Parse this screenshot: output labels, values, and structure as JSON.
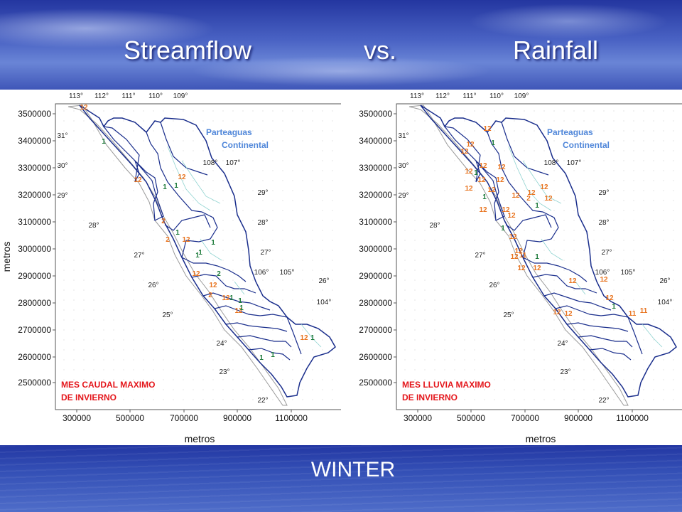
{
  "slide": {
    "title_left": "Streamflow",
    "title_mid": "vs.",
    "title_right": "Rainfall",
    "footer": "WINTER"
  },
  "maps": [
    {
      "map_title_line1": "MES CAUDAL MAXIMO",
      "map_title_line2": "DE INVIERNO",
      "divide_label_line1": "Parteaguas",
      "divide_label_line2": "Continental",
      "xlabel": "metros",
      "ylabel": "metros",
      "x_ticks": [
        "300000",
        "500000",
        "700000",
        "900000",
        "1100000"
      ],
      "y_ticks": [
        "3500000",
        "3400000",
        "3300000",
        "3200000",
        "3100000",
        "3000000",
        "2900000",
        "2800000",
        "2700000",
        "2600000",
        "2500000"
      ],
      "top_longitudes": [
        "113°",
        "112°",
        "111°",
        "110°",
        "109°"
      ],
      "interior_longitudes": [
        "108°",
        "107°",
        "106°",
        "105°",
        "104°"
      ],
      "latitudes": [
        "31°",
        "30°",
        "29°",
        "28°",
        "27°",
        "26°",
        "25°",
        "24°",
        "23°",
        "22°"
      ],
      "east_latitudes": [
        "29°",
        "28°",
        "27°",
        "26°"
      ],
      "month_labels": [
        {
          "t": "12",
          "c": "o"
        },
        {
          "t": "1",
          "c": "g"
        },
        {
          "t": "12",
          "c": "o"
        },
        {
          "t": "1",
          "c": "g"
        },
        {
          "t": "1",
          "c": "g"
        },
        {
          "t": "12",
          "c": "o"
        },
        {
          "t": "2",
          "c": "o"
        },
        {
          "t": "1",
          "c": "g"
        },
        {
          "t": "12",
          "c": "o"
        },
        {
          "t": "1",
          "c": "g"
        },
        {
          "t": "1",
          "c": "g"
        },
        {
          "t": "2",
          "c": "o"
        },
        {
          "t": "12",
          "c": "o"
        },
        {
          "t": "2",
          "c": "g"
        },
        {
          "t": "1",
          "c": "g"
        },
        {
          "t": "12",
          "c": "o"
        },
        {
          "t": "1",
          "c": "g"
        },
        {
          "t": "2",
          "c": "o"
        },
        {
          "t": "12",
          "c": "o"
        },
        {
          "t": "12",
          "c": "o"
        },
        {
          "t": "1",
          "c": "g"
        },
        {
          "t": "1",
          "c": "g"
        },
        {
          "t": "1",
          "c": "g"
        },
        {
          "t": "1",
          "c": "g"
        },
        {
          "t": "12",
          "c": "o"
        },
        {
          "t": "1",
          "c": "g"
        }
      ]
    },
    {
      "map_title_line1": "MES LLUVIA MAXIMO",
      "map_title_line2": "DE INVIERNO",
      "divide_label_line1": "Parteaguas",
      "divide_label_line2": "Continental",
      "xlabel": "metros",
      "ylabel": "",
      "x_ticks": [
        "300000",
        "500000",
        "700000",
        "900000",
        "1100000"
      ],
      "y_ticks": [
        "3500000",
        "3400000",
        "3300000",
        "3200000",
        "3100000",
        "3000000",
        "2900000",
        "2800000",
        "2700000",
        "2600000",
        "2500000"
      ],
      "top_longitudes": [
        "113°",
        "112°",
        "111°",
        "110°",
        "109°"
      ],
      "interior_longitudes": [
        "108°",
        "107°",
        "106°",
        "105°",
        "104°"
      ],
      "latitudes": [
        "31°",
        "30°",
        "29°",
        "28°",
        "27°",
        "26°",
        "25°",
        "24°",
        "23°",
        "22°"
      ],
      "east_latitudes": [
        "29°",
        "28°",
        "27°",
        "26°"
      ],
      "month_labels": [
        {
          "t": "12",
          "c": "o"
        },
        {
          "t": "12",
          "c": "o"
        },
        {
          "t": "1",
          "c": "g"
        },
        {
          "t": "12",
          "c": "o"
        },
        {
          "t": "12",
          "c": "o"
        },
        {
          "t": "1",
          "c": "g"
        },
        {
          "t": "12",
          "c": "o"
        },
        {
          "t": "12",
          "c": "o"
        },
        {
          "t": "12",
          "c": "o"
        },
        {
          "t": "12",
          "c": "o"
        },
        {
          "t": "12",
          "c": "o"
        },
        {
          "t": "1",
          "c": "g"
        },
        {
          "t": "12",
          "c": "o"
        },
        {
          "t": "12",
          "c": "o"
        },
        {
          "t": "12",
          "c": "o"
        },
        {
          "t": "12",
          "c": "o"
        },
        {
          "t": "2",
          "c": "o"
        },
        {
          "t": "12",
          "c": "o"
        },
        {
          "t": "1",
          "c": "g"
        },
        {
          "t": "12",
          "c": "o"
        },
        {
          "t": "12",
          "c": "o"
        },
        {
          "t": "12",
          "c": "o"
        },
        {
          "t": "1",
          "c": "g"
        },
        {
          "t": "12",
          "c": "o"
        },
        {
          "t": "12",
          "c": "o"
        },
        {
          "t": "12",
          "c": "o"
        },
        {
          "t": "11",
          "c": "o"
        },
        {
          "t": "12",
          "c": "o"
        },
        {
          "t": "12",
          "c": "o"
        },
        {
          "t": "1",
          "c": "g"
        },
        {
          "t": "12",
          "c": "o"
        },
        {
          "t": "12",
          "c": "o"
        },
        {
          "t": "12",
          "c": "o"
        },
        {
          "t": "1",
          "c": "g"
        },
        {
          "t": "11",
          "c": "o"
        },
        {
          "t": "11",
          "c": "o"
        },
        {
          "t": "12",
          "c": "o"
        },
        {
          "t": "12",
          "c": "o"
        }
      ]
    }
  ],
  "colors": {
    "month_12": "#e8731e",
    "month_1": "#1c7a3a",
    "basin": "#1a2e8c",
    "coast": "#9a9a9a",
    "divide_label": "#4f86d9",
    "map_title": "#e4161b"
  }
}
